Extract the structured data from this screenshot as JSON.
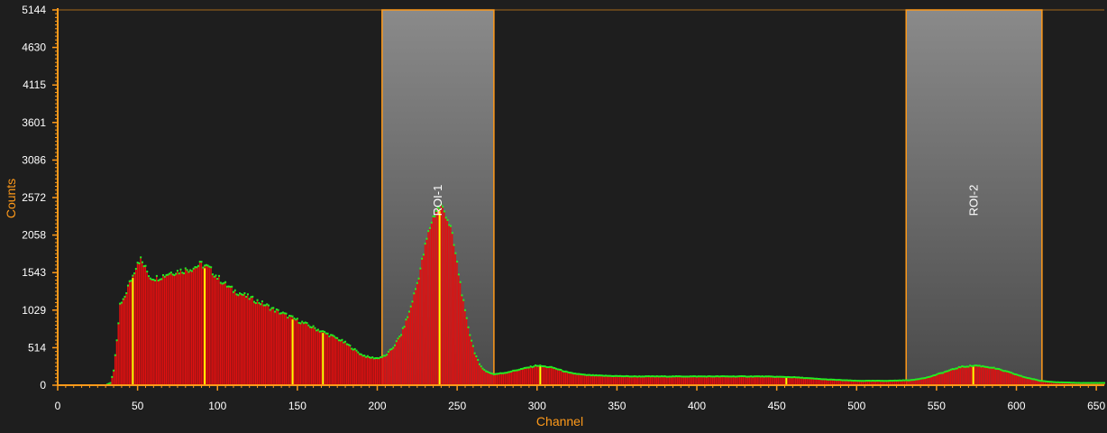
{
  "colors": {
    "background": "#1e1e1e",
    "axis": "#ff9a1a",
    "bars": "#e01010",
    "points": "#22ee22",
    "markers": "#ffff00",
    "roi_fill": "#7a7a7a",
    "roi_border": "#ff9a1a"
  },
  "chart_data": {
    "type": "bar",
    "title": "",
    "xlabel": "Channel",
    "ylabel": "Counts",
    "xlim": [
      0,
      655
    ],
    "ylim": [
      0,
      5144
    ],
    "x_ticks": [
      0,
      50,
      100,
      150,
      200,
      250,
      300,
      350,
      400,
      450,
      500,
      550,
      600,
      650
    ],
    "y_ticks": [
      0,
      514,
      1029,
      1543,
      2058,
      2572,
      3086,
      3601,
      4115,
      4630,
      5144
    ],
    "grid": false,
    "rois": [
      {
        "name": "ROI-1",
        "start": 203,
        "end": 273
      },
      {
        "name": "ROI-2",
        "start": 531,
        "end": 616
      }
    ],
    "peak_markers": [
      47,
      92,
      147,
      166,
      239,
      302,
      456,
      573
    ],
    "spectrum": {
      "x": [
        0,
        30,
        33,
        35,
        37,
        39,
        41,
        44,
        47,
        50,
        52,
        55,
        58,
        62,
        66,
        70,
        75,
        80,
        85,
        90,
        95,
        100,
        105,
        110,
        115,
        120,
        125,
        130,
        135,
        140,
        145,
        150,
        155,
        160,
        165,
        170,
        175,
        180,
        185,
        190,
        195,
        200,
        205,
        210,
        215,
        220,
        225,
        228,
        231,
        234,
        237,
        240,
        243,
        246,
        249,
        252,
        255,
        258,
        261,
        264,
        268,
        273,
        280,
        290,
        300,
        310,
        320,
        330,
        340,
        360,
        380,
        400,
        420,
        440,
        460,
        480,
        500,
        520,
        535,
        545,
        555,
        565,
        575,
        585,
        595,
        605,
        615,
        625,
        640,
        655
      ],
      "y": [
        0,
        0,
        30,
        200,
        600,
        1100,
        1150,
        1350,
        1500,
        1700,
        1720,
        1600,
        1480,
        1470,
        1500,
        1540,
        1560,
        1580,
        1610,
        1660,
        1600,
        1480,
        1380,
        1300,
        1250,
        1200,
        1150,
        1100,
        1040,
        990,
        940,
        890,
        840,
        790,
        740,
        690,
        640,
        580,
        500,
        420,
        380,
        370,
        400,
        520,
        700,
        1000,
        1400,
        1700,
        2000,
        2250,
        2400,
        2450,
        2350,
        2150,
        1800,
        1400,
        1000,
        700,
        450,
        280,
        190,
        150,
        170,
        220,
        270,
        240,
        170,
        140,
        130,
        120,
        120,
        120,
        120,
        120,
        110,
        80,
        60,
        60,
        70,
        110,
        180,
        250,
        270,
        240,
        180,
        110,
        60,
        40,
        30,
        30
      ]
    }
  }
}
